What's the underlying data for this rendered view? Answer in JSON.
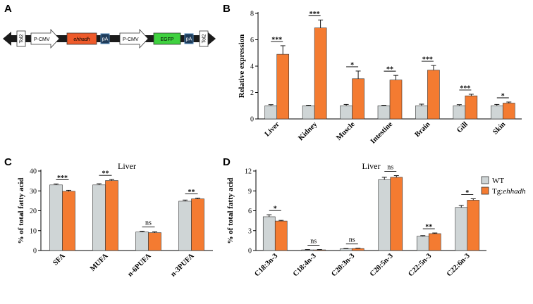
{
  "colors": {
    "wt": "#cfd5d6",
    "tg": "#f47b31",
    "edge": "#333333"
  },
  "panel_labels": [
    "A",
    "B",
    "C",
    "D"
  ],
  "construct": {
    "elements": [
      {
        "label": "Tol2",
        "type": "box-vertical"
      },
      {
        "label": "P-CMV",
        "type": "arrow"
      },
      {
        "label": "ehhadh",
        "type": "box-red"
      },
      {
        "label": "pA",
        "type": "box-small"
      },
      {
        "label": "P-CMV",
        "type": "arrow"
      },
      {
        "label": "EGFP",
        "type": "box-green"
      },
      {
        "label": "pA",
        "type": "box-small"
      },
      {
        "label": "Tol2",
        "type": "box-vertical"
      }
    ]
  },
  "legend": {
    "wt": "WT",
    "tg_prefix": "Tg:",
    "tg_gene": "ehhadh"
  },
  "chart_data": [
    {
      "panel": "B",
      "type": "bar",
      "title": "",
      "ylabel": "Relative expression",
      "xlabel": "",
      "ylim": [
        0,
        8
      ],
      "yticks": [
        0,
        2,
        4,
        6,
        8
      ],
      "categories": [
        "Liver",
        "Kidney",
        "Muscle",
        "Intestine",
        "Brain",
        "Gill",
        "Skin"
      ],
      "series": [
        {
          "name": "WT",
          "values": [
            1.0,
            1.0,
            1.0,
            1.0,
            1.0,
            1.0,
            1.0
          ],
          "errors": [
            0.08,
            0.04,
            0.1,
            0.04,
            0.12,
            0.08,
            0.1
          ]
        },
        {
          "name": "Tg:ehhadh",
          "values": [
            4.9,
            6.9,
            3.05,
            2.95,
            3.7,
            1.75,
            1.2
          ],
          "errors": [
            0.65,
            0.6,
            0.58,
            0.35,
            0.35,
            0.12,
            0.08
          ]
        }
      ],
      "significance": [
        "***",
        "***",
        "*",
        "**",
        "***",
        "***",
        "*"
      ]
    },
    {
      "panel": "C",
      "type": "bar",
      "title": "Liver",
      "ylabel": "% of total fatty acid",
      "xlabel": "",
      "ylim": [
        0,
        40
      ],
      "yticks": [
        0,
        10,
        20,
        30,
        40
      ],
      "categories": [
        "SFA",
        "MUFA",
        "n-6PUFA",
        "n-3PUFA"
      ],
      "series": [
        {
          "name": "WT",
          "values": [
            33.0,
            33.0,
            9.3,
            24.8
          ],
          "errors": [
            0.5,
            0.6,
            0.4,
            0.6
          ]
        },
        {
          "name": "Tg:ehhadh",
          "values": [
            29.8,
            35.2,
            9.0,
            26.0
          ],
          "errors": [
            0.5,
            0.5,
            0.4,
            0.4
          ]
        }
      ],
      "significance": [
        "***",
        "**",
        "ns",
        "**"
      ]
    },
    {
      "panel": "D",
      "type": "bar",
      "title": "Liver",
      "ylabel": "% of total fatty acid",
      "xlabel": "",
      "ylim": [
        0,
        12
      ],
      "yticks": [
        0,
        3,
        6,
        9,
        12
      ],
      "categories": [
        "C18:3n-3",
        "C18:4n-3",
        "C20:3n-3",
        "C20:5n-3",
        "C22:5n-3",
        "C22:6n-3"
      ],
      "series": [
        {
          "name": "WT",
          "values": [
            5.1,
            0.1,
            0.25,
            10.7,
            2.15,
            6.5
          ],
          "errors": [
            0.3,
            0.05,
            0.05,
            0.35,
            0.1,
            0.3
          ]
        },
        {
          "name": "Tg:ehhadh",
          "values": [
            4.45,
            0.1,
            0.3,
            11.05,
            2.55,
            7.6
          ],
          "errors": [
            0.1,
            0.05,
            0.05,
            0.25,
            0.1,
            0.2
          ]
        }
      ],
      "significance": [
        "*",
        "ns",
        "ns",
        "ns",
        "**",
        "*"
      ]
    }
  ]
}
